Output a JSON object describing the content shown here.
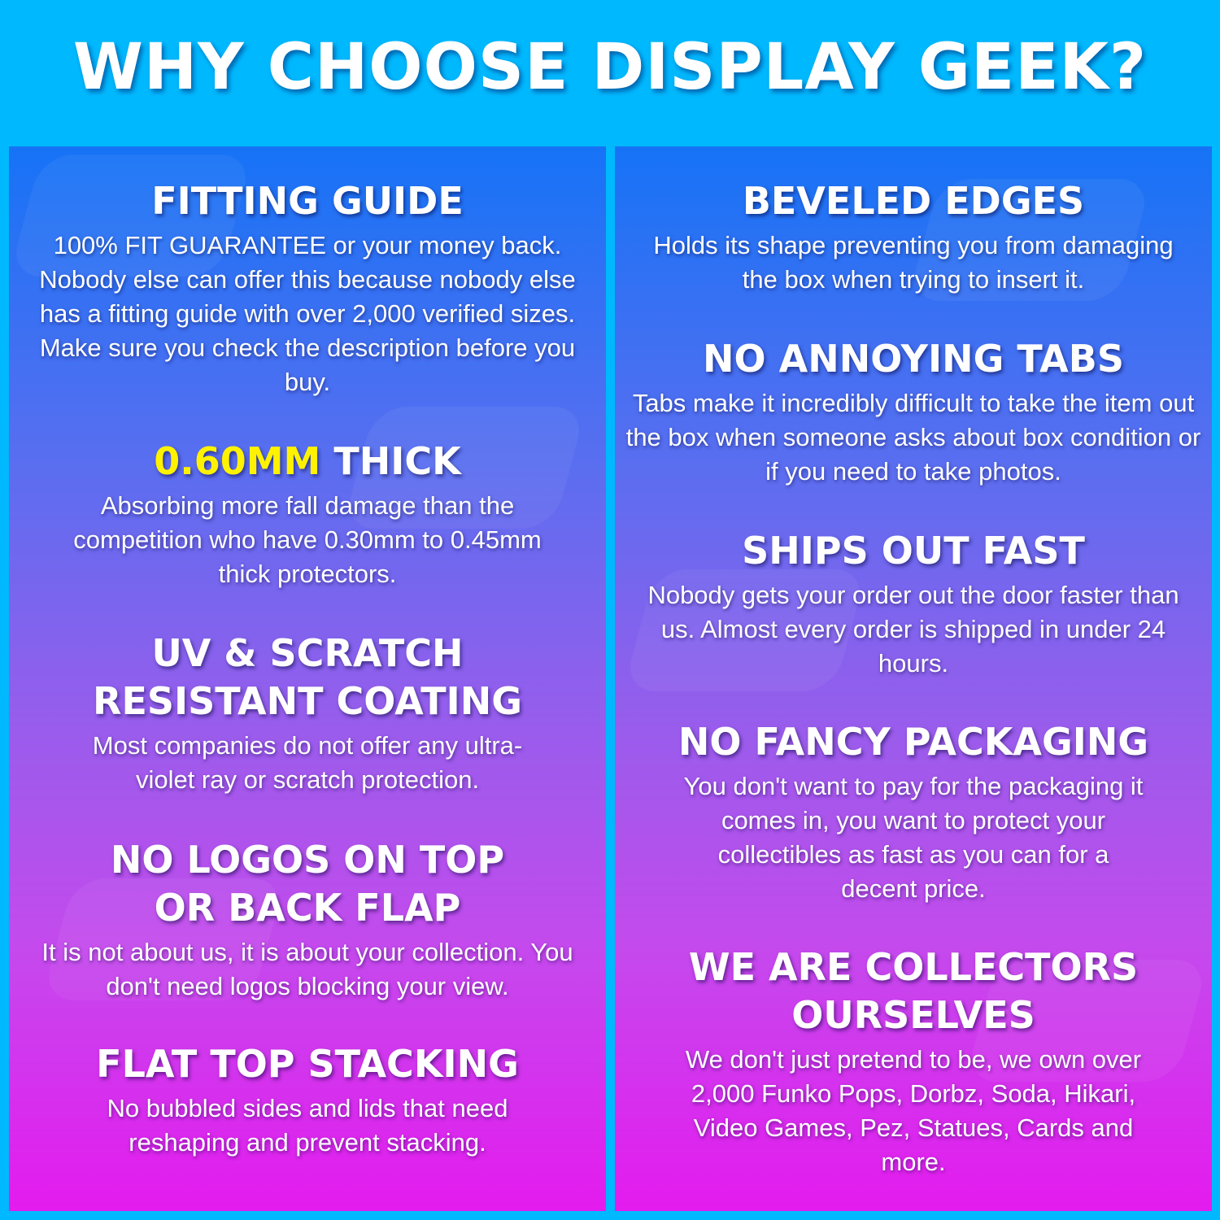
{
  "title": "WHY CHOOSE DISPLAY GEEK?",
  "colors": {
    "background": "#00b8fe",
    "gradient_top": "#1673f6",
    "gradient_bottom": "#e41bee",
    "highlight": "#fff200"
  },
  "left": [
    {
      "title": "FITTING GUIDE",
      "body": "100% FIT GUARANTEE or your money back. Nobody else can offer this because nobody else has a fitting guide with over 2,000 verified sizes. Make sure you check the description before you buy."
    },
    {
      "title_highlight": "0.60MM",
      "title": "THICK",
      "body": "Absorbing more fall damage than the competition who have 0.30mm to 0.45mm thick protectors."
    },
    {
      "title": "UV & SCRATCH RESISTANT COATING",
      "body": "Most companies do not offer any ultra-violet ray or scratch protection."
    },
    {
      "title": "NO LOGOS ON TOP OR BACK FLAP",
      "body": "It is not about us, it is about your collection. You don't need logos blocking your view."
    },
    {
      "title": "FLAT TOP STACKING",
      "body": "No bubbled sides and lids that need reshaping and prevent stacking."
    }
  ],
  "right": [
    {
      "title": "BEVELED EDGES",
      "body": "Holds its shape preventing you from damaging the box when trying to insert it."
    },
    {
      "title": "NO ANNOYING TABS",
      "body": "Tabs make it incredibly difficult to take the item out the box when someone asks about box condition or if you need to take photos."
    },
    {
      "title": "SHIPS OUT FAST",
      "body": "Nobody gets your order out the door faster than us. Almost every order is shipped in under 24 hours."
    },
    {
      "title": "NO FANCY PACKAGING",
      "body": "You don't want to pay for the packaging it comes in, you want to protect your collectibles as fast as you can for a decent price."
    },
    {
      "title": "WE ARE COLLECTORS OURSELVES",
      "body": "We don't just pretend to be, we own over 2,000 Funko Pops, Dorbz, Soda, Hikari, Video Games, Pez, Statues, Cards and more."
    }
  ]
}
